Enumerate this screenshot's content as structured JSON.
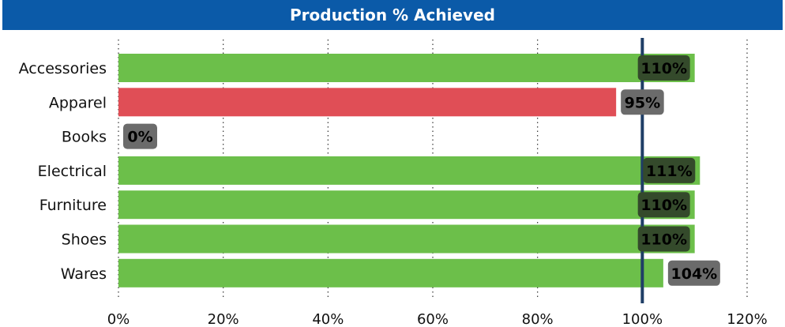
{
  "chart_data": {
    "type": "bar",
    "orientation": "horizontal",
    "title": "Production % Achieved",
    "categories": [
      "Accessories",
      "Apparel",
      "Books",
      "Electrical",
      "Furniture",
      "Shoes",
      "Wares"
    ],
    "values": [
      110,
      95,
      0,
      111,
      110,
      110,
      104
    ],
    "data_labels": [
      "110%",
      "95%",
      "0%",
      "111%",
      "110%",
      "110%",
      "104%"
    ],
    "x_ticks": [
      "0%",
      "20%",
      "40%",
      "60%",
      "80%",
      "100%",
      "120%"
    ],
    "xlim": [
      0,
      120
    ],
    "target": 100,
    "colors": {
      "above_target": "#6cbf4a",
      "below_target": "#e04e56",
      "target_line": "#1f3e66",
      "title_bg": "#0b5aa8",
      "label_bg_dark": "#344a2b",
      "label_bg_grey": "#6b6b6b"
    }
  }
}
